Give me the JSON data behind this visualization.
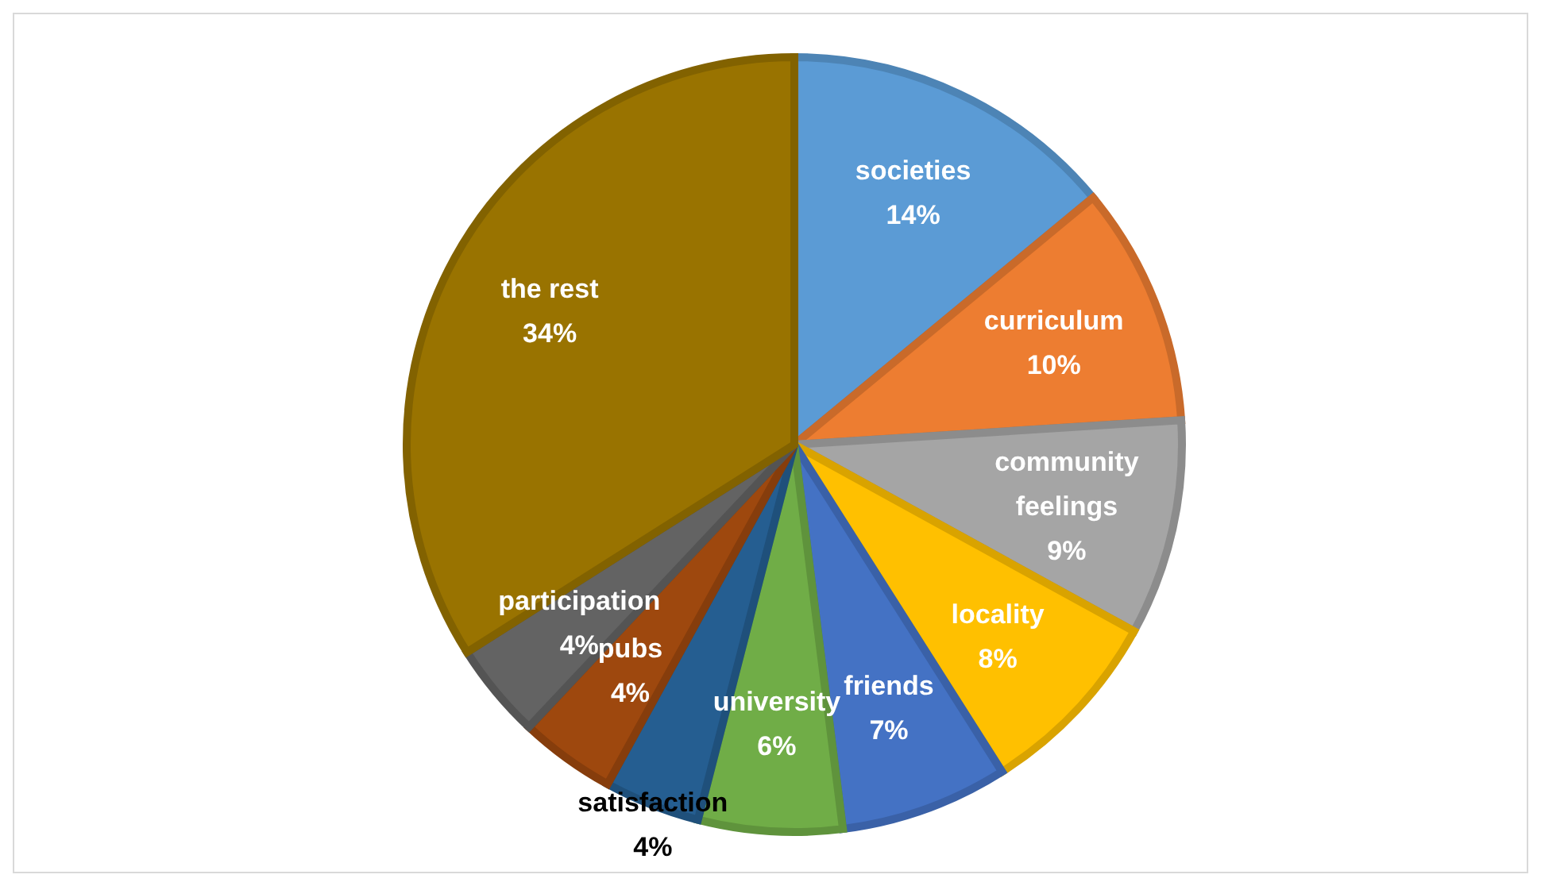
{
  "chart_data": {
    "type": "pie",
    "categories": [
      "societies",
      "curriculum",
      "community feelings",
      "locality",
      "friends",
      "university",
      "satisfaction",
      "pubs",
      "participation",
      "the rest"
    ],
    "values": [
      14,
      10,
      9,
      8,
      7,
      6,
      4,
      4,
      4,
      34
    ],
    "value_labels": [
      "14%",
      "10%",
      "9%",
      "8%",
      "7%",
      "6%",
      "4%",
      "4%",
      "4%",
      "34%"
    ],
    "colors": [
      "#5b9bd5",
      "#ed7d31",
      "#a5a5a5",
      "#ffc000",
      "#4472c4",
      "#70ad47",
      "#255e91",
      "#9e480e",
      "#636363",
      "#997300"
    ],
    "legend": false
  }
}
